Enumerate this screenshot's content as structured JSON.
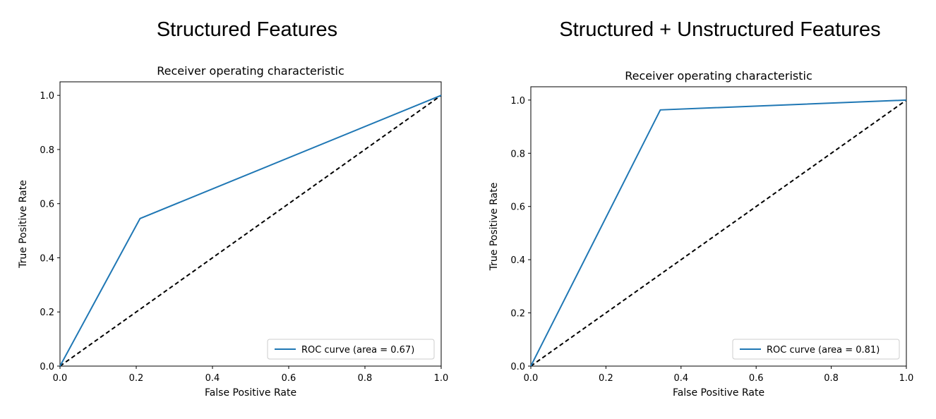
{
  "panels": [
    {
      "heading": "Structured Features"
    },
    {
      "heading": "Structured + Unstructured Features"
    }
  ],
  "chart_data": [
    {
      "type": "line",
      "title": "Receiver operating characteristic",
      "xlabel": "False Positive Rate",
      "ylabel": "True Positive Rate",
      "xlim": [
        0.0,
        1.0
      ],
      "ylim": [
        0.0,
        1.05
      ],
      "xticks": [
        "0.0",
        "0.2",
        "0.4",
        "0.6",
        "0.8",
        "1.0"
      ],
      "yticks": [
        "0.0",
        "0.2",
        "0.4",
        "0.6",
        "0.8",
        "1.0"
      ],
      "grid": false,
      "legend_position": "lower right",
      "series": [
        {
          "name": "ROC curve (area = 0.67)",
          "color": "#1f77b4",
          "style": "solid",
          "x": [
            0.0,
            0.21,
            1.0
          ],
          "y": [
            0.0,
            0.545,
            1.0
          ]
        },
        {
          "color": "#000000",
          "style": "dashed",
          "x": [
            0.0,
            1.0
          ],
          "y": [
            0.0,
            1.0
          ]
        }
      ]
    },
    {
      "type": "line",
      "title": "Receiver operating characteristic",
      "xlabel": "False Positive Rate",
      "ylabel": "True Positive Rate",
      "xlim": [
        0.0,
        1.0
      ],
      "ylim": [
        0.0,
        1.05
      ],
      "xticks": [
        "0.0",
        "0.2",
        "0.4",
        "0.6",
        "0.8",
        "1.0"
      ],
      "yticks": [
        "0.0",
        "0.2",
        "0.4",
        "0.6",
        "0.8",
        "1.0"
      ],
      "grid": false,
      "legend_position": "lower right",
      "series": [
        {
          "name": "ROC curve (area = 0.81)",
          "color": "#1f77b4",
          "style": "solid",
          "x": [
            0.0,
            0.345,
            1.0
          ],
          "y": [
            0.0,
            0.963,
            1.0
          ]
        },
        {
          "color": "#000000",
          "style": "dashed",
          "x": [
            0.0,
            1.0
          ],
          "y": [
            0.0,
            1.0
          ]
        }
      ]
    }
  ]
}
